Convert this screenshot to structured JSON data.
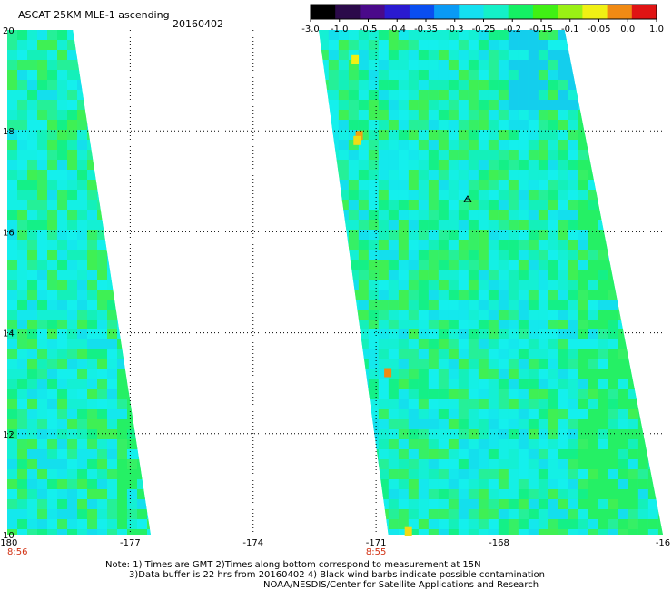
{
  "header": {
    "product": "ASCAT 25KM MLE-1 ascending",
    "date": "20160402"
  },
  "colorbar": {
    "ticks": [
      "-3.0",
      "-1.0",
      "-0.5",
      "-0.4",
      "-0.35",
      "-0.3",
      "-0.25",
      "-0.2",
      "-0.15",
      "-0.1",
      "-0.05",
      "0.0",
      "1.0"
    ],
    "colors": [
      "#000000",
      "#2b0a4a",
      "#4a0a8a",
      "#2a1ad0",
      "#0a4ef0",
      "#0a9af5",
      "#14e0f0",
      "#14f0c8",
      "#14f064",
      "#40f014",
      "#9af014",
      "#f0f014",
      "#f08a14",
      "#e01414"
    ]
  },
  "footer": {
    "note_line1": "Note: 1) Times are GMT 2)Times along bottom correspond to measurement at 15N",
    "note_line2": "3)Data buffer is 22 hrs from 20160402 4) Black wind barbs indicate possible contamination",
    "credit": "NOAA/NESDIS/Center for Satellite Applications and Research"
  },
  "chart_data": {
    "type": "heatmap",
    "title": "ASCAT 25KM MLE-1 ascending 20160402",
    "xlabel": "",
    "ylabel": "",
    "xlim": [
      -180,
      -164
    ],
    "ylim": [
      10,
      20
    ],
    "x_ticks": [
      "-180",
      "-177",
      "-174",
      "-171",
      "-168",
      "-16"
    ],
    "y_ticks": [
      "20",
      "18",
      "16",
      "14",
      "12",
      "10"
    ],
    "grid": "dotted",
    "swath_times": [
      {
        "lon": -180,
        "label": "8:56"
      },
      {
        "lon": -171,
        "label": "8:55"
      }
    ],
    "swaths": [
      {
        "lon_west": -180,
        "lon_east_top": -178.4,
        "lon_east_bottom": -176.5,
        "dominant": "-0.3 to -0.2"
      },
      {
        "lon_west_top": -172.4,
        "lon_west_bottom": -170.7,
        "lon_east_top": -166.4,
        "lon_east_bottom": -164,
        "dominant": "-0.3 to -0.2"
      }
    ],
    "colorbar_ticks": [
      -3.0,
      -1.0,
      -0.5,
      -0.4,
      -0.35,
      -0.3,
      -0.25,
      -0.2,
      -0.15,
      -0.1,
      -0.05,
      0.0,
      1.0
    ]
  }
}
